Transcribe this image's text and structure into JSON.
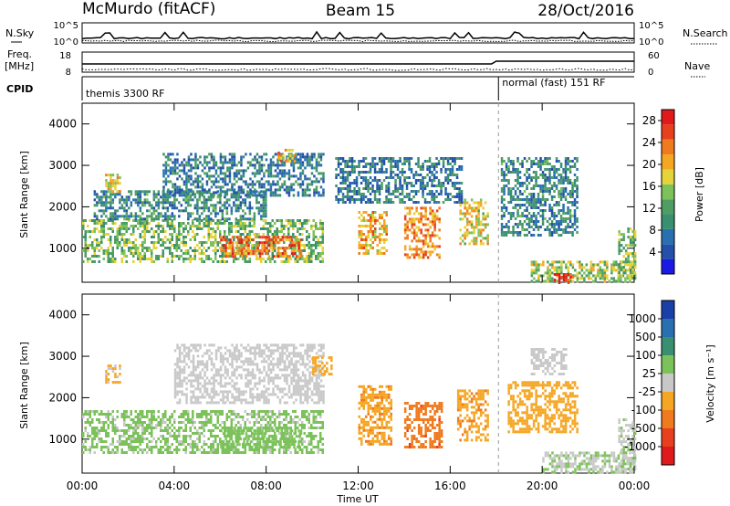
{
  "header": {
    "station": "McMurdo (fitACF)",
    "beam": "Beam 15",
    "date": "28/Oct/2016"
  },
  "status_panels": {
    "nsky_label": "N.Sky",
    "nsearch_label": "N.Search",
    "nsky_ticks": [
      "10^5",
      "10^0"
    ],
    "nsearch_ticks": [
      "10^5",
      "10^0"
    ],
    "freq_label": "Freq.",
    "freq_unit": "[MHz]",
    "freq_ticks": [
      "18",
      "8"
    ],
    "nave_label": "Nave",
    "nave_ticks": [
      "60",
      "0"
    ],
    "cpid_label": "CPID",
    "cpid_segments": [
      {
        "label": "themis 3300 RF",
        "start_hour": 0,
        "end_hour": 18.1
      },
      {
        "label": "normal (fast) 151 RF",
        "start_hour": 18.1,
        "end_hour": 24
      }
    ],
    "noise_series_color": "#000000",
    "search_series_style": "dotted"
  },
  "x_axis": {
    "label": "Time UT",
    "ticks": [
      "00:00",
      "04:00",
      "08:00",
      "12:00",
      "16:00",
      "20:00",
      "00:00"
    ],
    "range_hours": [
      0,
      24
    ]
  },
  "chart_data": [
    {
      "type": "heatmap",
      "name": "power-panel",
      "ylabel": "Slant Range [km]",
      "yticks": [
        "1000",
        "2000",
        "3000",
        "4000"
      ],
      "ylim": [
        180,
        4500
      ],
      "xlim_hours": [
        0,
        24
      ],
      "colorbar_label": "Power [dB]",
      "colorbar_ticks": [
        "4",
        "8",
        "12",
        "16",
        "20",
        "24",
        "28"
      ],
      "colorbar_range": [
        0,
        30
      ],
      "colorscale": [
        "#1a1ae6",
        "#2350a8",
        "#2a6fb0",
        "#3a8f70",
        "#4f9d62",
        "#7cc25a",
        "#e6d23a",
        "#f5a623",
        "#f07a1e",
        "#e8401e",
        "#e01a1a"
      ],
      "echo_regions": [
        {
          "start_hour": 0.0,
          "end_hour": 10.5,
          "range_km": [
            700,
            1700
          ],
          "power_db": 14
        },
        {
          "start_hour": 6.0,
          "end_hour": 9.5,
          "range_km": [
            800,
            1300
          ],
          "power_db": 24
        },
        {
          "start_hour": 0.5,
          "end_hour": 8.0,
          "range_km": [
            1700,
            2400
          ],
          "power_db": 9
        },
        {
          "start_hour": 3.5,
          "end_hour": 10.5,
          "range_km": [
            2300,
            3300
          ],
          "power_db": 8
        },
        {
          "start_hour": 8.5,
          "end_hour": 9.2,
          "range_km": [
            3100,
            3400
          ],
          "power_db": 20
        },
        {
          "start_hour": 1.0,
          "end_hour": 1.6,
          "range_km": [
            2400,
            2800
          ],
          "power_db": 18
        },
        {
          "start_hour": 12.0,
          "end_hour": 13.2,
          "range_km": [
            900,
            1900
          ],
          "power_db": 20
        },
        {
          "start_hour": 14.0,
          "end_hour": 15.5,
          "range_km": [
            800,
            2000
          ],
          "power_db": 22
        },
        {
          "start_hour": 16.4,
          "end_hour": 17.6,
          "range_km": [
            1100,
            2200
          ],
          "power_db": 18
        },
        {
          "start_hour": 11.0,
          "end_hour": 16.5,
          "range_km": [
            2100,
            3200
          ],
          "power_db": 8
        },
        {
          "start_hour": 18.2,
          "end_hour": 21.5,
          "range_km": [
            1300,
            3200
          ],
          "power_db": 9
        },
        {
          "start_hour": 19.5,
          "end_hour": 24.0,
          "range_km": [
            200,
            700
          ],
          "power_db": 16
        },
        {
          "start_hour": 20.5,
          "end_hour": 21.3,
          "range_km": [
            200,
            400
          ],
          "power_db": 28
        },
        {
          "start_hour": 23.3,
          "end_hour": 24.0,
          "range_km": [
            300,
            1500
          ],
          "power_db": 14
        }
      ]
    },
    {
      "type": "heatmap",
      "name": "velocity-panel",
      "ylabel": "Slant Range [km]",
      "yticks": [
        "1000",
        "2000",
        "3000",
        "4000"
      ],
      "ylim": [
        180,
        4500
      ],
      "xlim_hours": [
        0,
        24
      ],
      "colorbar_label": "Velocity [m s⁻¹]",
      "colorbar_ticks": [
        "1000",
        "500",
        "100",
        "25",
        "-25",
        "-100",
        "-500",
        "-1000"
      ],
      "colorbar_range": [
        -1000,
        1000
      ],
      "colorscale": [
        "#e01a1a",
        "#e8401e",
        "#f07a1e",
        "#f5a623",
        "#c8c8c8",
        "#7cc25a",
        "#3a8f70",
        "#2a6fb0",
        "#1a3fa8"
      ],
      "echo_regions": [
        {
          "start_hour": 0.0,
          "end_hour": 10.5,
          "range_km": [
            700,
            1700
          ],
          "velocity": 150
        },
        {
          "start_hour": 6.0,
          "end_hour": 9.5,
          "range_km": [
            800,
            1300
          ],
          "velocity": 200
        },
        {
          "start_hour": 4.0,
          "end_hour": 10.5,
          "range_km": [
            1900,
            3300
          ],
          "velocity": 0
        },
        {
          "start_hour": 1.0,
          "end_hour": 1.6,
          "range_km": [
            2400,
            2800
          ],
          "velocity": -150
        },
        {
          "start_hour": 10.0,
          "end_hour": 10.8,
          "range_km": [
            2600,
            3000
          ],
          "velocity": -200
        },
        {
          "start_hour": 12.0,
          "end_hour": 13.4,
          "range_km": [
            900,
            2300
          ],
          "velocity": -300
        },
        {
          "start_hour": 14.0,
          "end_hour": 15.6,
          "range_km": [
            800,
            1900
          ],
          "velocity": -500
        },
        {
          "start_hour": 16.3,
          "end_hour": 17.6,
          "range_km": [
            1000,
            2200
          ],
          "velocity": -300
        },
        {
          "start_hour": 18.5,
          "end_hour": 21.5,
          "range_km": [
            1200,
            2400
          ],
          "velocity": -200
        },
        {
          "start_hour": 19.5,
          "end_hour": 21.0,
          "range_km": [
            2600,
            3200
          ],
          "velocity": 0
        },
        {
          "start_hour": 20.0,
          "end_hour": 24.0,
          "range_km": [
            200,
            700
          ],
          "velocity": 100
        },
        {
          "start_hour": 23.3,
          "end_hour": 24.0,
          "range_km": [
            300,
            1500
          ],
          "velocity": 80
        }
      ]
    }
  ]
}
